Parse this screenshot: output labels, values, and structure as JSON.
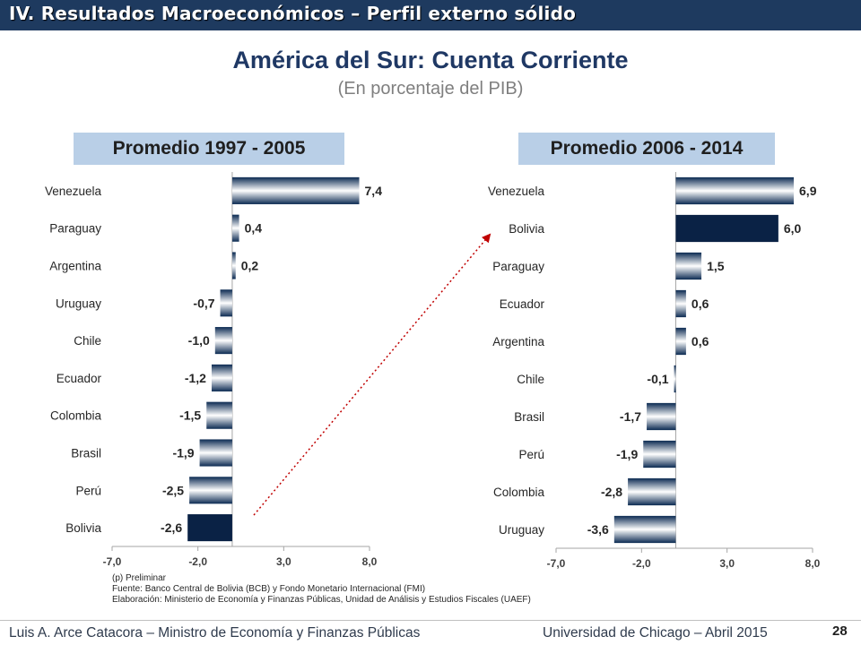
{
  "header": {
    "title": "IV. Resultados Macroeconómicos – Perfil externo sólido"
  },
  "main_title": "América del Sur: Cuenta Corriente",
  "subtitle": "(En porcentaje del PIB)",
  "panels": {
    "left_label": "Promedio 1997 - 2005",
    "right_label": "Promedio 2006 - 2014"
  },
  "colors": {
    "header_bg": "#1e3a5f",
    "bar_dark": "#0b2a52",
    "bar_mid": "#ffffff",
    "bolivia_fill": "#0a2245",
    "panel_label_bg": "#b9cfe7",
    "arrow": "#c00000"
  },
  "chart_data": [
    {
      "type": "bar",
      "orientation": "horizontal",
      "title": "Promedio 1997 - 2005",
      "categories": [
        "Venezuela",
        "Paraguay",
        "Argentina",
        "Uruguay",
        "Chile",
        "Ecuador",
        "Colombia",
        "Brasil",
        "Perú",
        "Bolivia"
      ],
      "values": [
        7.4,
        0.4,
        0.2,
        -0.7,
        -1.0,
        -1.2,
        -1.5,
        -1.9,
        -2.5,
        -2.6
      ],
      "value_labels": [
        "7,4",
        "0,4",
        "0,2",
        "-0,7",
        "-1,0",
        "-1,2",
        "-1,5",
        "-1,9",
        "-2,5",
        "-2,6"
      ],
      "highlight": "Bolivia",
      "xlim": [
        -7.0,
        8.0
      ],
      "xticks": [
        -7.0,
        -2.0,
        3.0,
        8.0
      ],
      "xtick_labels": [
        "-7,0",
        "-2,0",
        "3,0",
        "8,0"
      ]
    },
    {
      "type": "bar",
      "orientation": "horizontal",
      "title": "Promedio 2006 - 2014",
      "categories": [
        "Venezuela",
        "Bolivia",
        "Paraguay",
        "Ecuador",
        "Argentina",
        "Chile",
        "Brasil",
        "Perú",
        "Colombia",
        "Uruguay"
      ],
      "values": [
        6.9,
        6.0,
        1.5,
        0.6,
        0.6,
        -0.1,
        -1.7,
        -1.9,
        -2.8,
        -3.6
      ],
      "value_labels": [
        "6,9",
        "6,0",
        "1,5",
        "0,6",
        "0,6",
        "-0,1",
        "-1,7",
        "-1,9",
        "-2,8",
        "-3,6"
      ],
      "highlight": "Bolivia",
      "xlim": [
        -7.0,
        8.0
      ],
      "xticks": [
        -7.0,
        -2.0,
        3.0,
        8.0
      ],
      "xtick_labels": [
        "-7,0",
        "-2,0",
        "3,0",
        "8,0"
      ]
    }
  ],
  "notes": [
    "(p) Preliminar",
    "Fuente: Banco Central de Bolivia (BCB) y Fondo Monetario Internacional (FMI)",
    "Elaboración: Ministerio de Economía y Finanzas Públicas, Unidad de Análisis y Estudios Fiscales (UAEF)"
  ],
  "footer": {
    "left": "Luis A. Arce Catacora – Ministro de Economía y Finanzas Públicas",
    "right": "Universidad de Chicago – Abril 2015",
    "page": "28"
  }
}
